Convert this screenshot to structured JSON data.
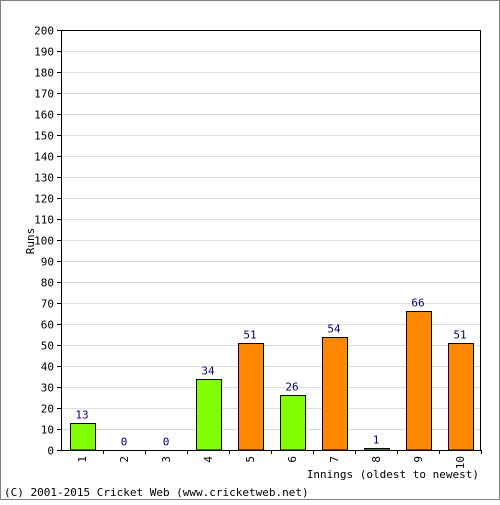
{
  "chart_data": {
    "type": "bar",
    "categories": [
      "1",
      "2",
      "3",
      "4",
      "5",
      "6",
      "7",
      "8",
      "9",
      "10"
    ],
    "values": [
      13,
      0,
      0,
      34,
      51,
      26,
      54,
      1,
      66,
      51
    ],
    "bar_colors": [
      "#80ff00",
      "#80ff00",
      "#80ff00",
      "#80ff00",
      "#ff8800",
      "#80ff00",
      "#ff8800",
      "#80ff00",
      "#ff8800",
      "#ff8800"
    ],
    "ylabel": "Runs",
    "xlabel": "Innings (oldest to newest)",
    "ylim": [
      0,
      200
    ],
    "ytick_step": 10,
    "grid": true,
    "label_color": "#000080"
  },
  "footer": {
    "copyright": "(C) 2001-2015 Cricket Web (www.cricketweb.net)"
  }
}
